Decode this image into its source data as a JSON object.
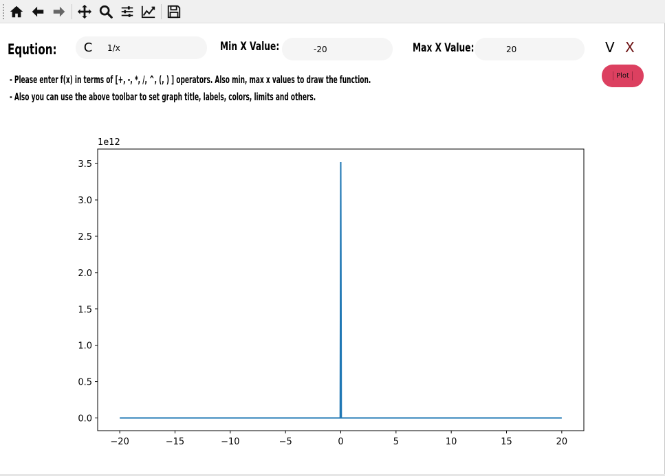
{
  "toolbar": {
    "buttons": [
      {
        "name": "home-icon"
      },
      {
        "name": "back-icon"
      },
      {
        "name": "forward-icon"
      },
      {
        "name": "pan-icon"
      },
      {
        "name": "zoom-icon"
      },
      {
        "name": "configure-subplots-icon"
      },
      {
        "name": "edit-axis-icon"
      },
      {
        "name": "save-icon"
      }
    ]
  },
  "form": {
    "equation_label": "Eqution:",
    "c_button": "C",
    "equation_value": "1/x",
    "min_label": "Min X Value:",
    "min_value": "-20",
    "max_label": "Max X Value:",
    "max_value": "20",
    "v_button": "V",
    "x_button": "X",
    "plot_button": "Plot"
  },
  "hints": {
    "line1": "- Please enter f(x) in terms of [+, -, *, /, ^, (, ) ] operators. Also min, max x values to draw the function.",
    "line2": "- Also you can use the above toolbar to set graph title, labels, colors, limits and others."
  },
  "colors": {
    "line": "#1f77b4",
    "plot_button": "#dc4060",
    "x_button": "#6b0f10"
  },
  "chart_data": {
    "type": "line",
    "offset_label": "1e12",
    "xlim": [
      -22,
      22
    ],
    "ylim": [
      -175000000000.0,
      3700000000000.0
    ],
    "xticks": [
      -20,
      -15,
      -10,
      -5,
      0,
      5,
      10,
      15,
      20
    ],
    "xtick_labels": [
      "−20",
      "−15",
      "−10",
      "−5",
      "0",
      "5",
      "10",
      "15",
      "20"
    ],
    "yticks": [
      0,
      500000000000.0,
      1000000000000.0,
      1500000000000.0,
      2000000000000.0,
      2500000000000.0,
      3000000000000.0,
      3500000000000.0
    ],
    "ytick_labels": [
      "0.0",
      "0.5",
      "1.0",
      "1.5",
      "2.0",
      "2.5",
      "3.0",
      "3.5"
    ],
    "series": [
      {
        "values_note": "",
        "x": [
          -20,
          -0.2,
          -0.05,
          0.0,
          0.05,
          0.2,
          20
        ],
        "y": [
          0,
          0,
          0,
          3520000000000.0,
          0,
          0,
          0
        ]
      }
    ],
    "grid": false,
    "legend": "none"
  }
}
